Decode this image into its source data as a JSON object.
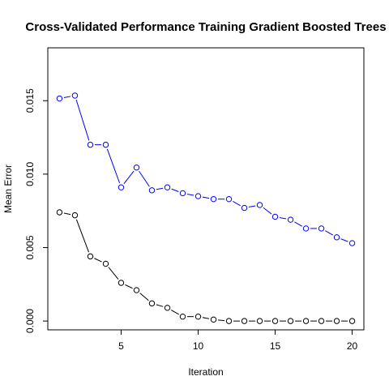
{
  "chart_data": {
    "type": "line",
    "title": "Cross-Validated Performance Training Gradient Boosted Trees",
    "xlabel": "Iteration",
    "ylabel": "Mean Error",
    "xlim": [
      0.24,
      20.76
    ],
    "ylim": [
      -0.0006,
      0.0186
    ],
    "xticks": [
      5,
      10,
      15,
      20
    ],
    "yticks": [
      0.0,
      0.005,
      0.01,
      0.015
    ],
    "xtick_labels": [
      "5",
      "10",
      "15",
      "20"
    ],
    "ytick_labels": [
      "0.000",
      "0.005",
      "0.010",
      "0.015"
    ],
    "grid": false,
    "legend": "none",
    "x": [
      1,
      2,
      3,
      4,
      5,
      6,
      7,
      8,
      9,
      10,
      11,
      12,
      13,
      14,
      15,
      16,
      17,
      18,
      19,
      20
    ],
    "series": [
      {
        "color": "#0000ff",
        "values": [
          0.01515,
          0.01535,
          0.012,
          0.012,
          0.0091,
          0.01045,
          0.0089,
          0.0091,
          0.0087,
          0.0085,
          0.0083,
          0.0083,
          0.0077,
          0.0079,
          0.0071,
          0.0069,
          0.0063,
          0.0063,
          0.0057,
          0.0053
        ]
      },
      {
        "color": "#000000",
        "values": [
          0.0074,
          0.0072,
          0.0044,
          0.0039,
          0.0026,
          0.0021,
          0.0012,
          0.0009,
          0.0003,
          0.0003,
          0.0001,
          0.0,
          0.0,
          0.0,
          0.0,
          0.0,
          0.0,
          0.0,
          0.0,
          0.0
        ]
      }
    ]
  }
}
